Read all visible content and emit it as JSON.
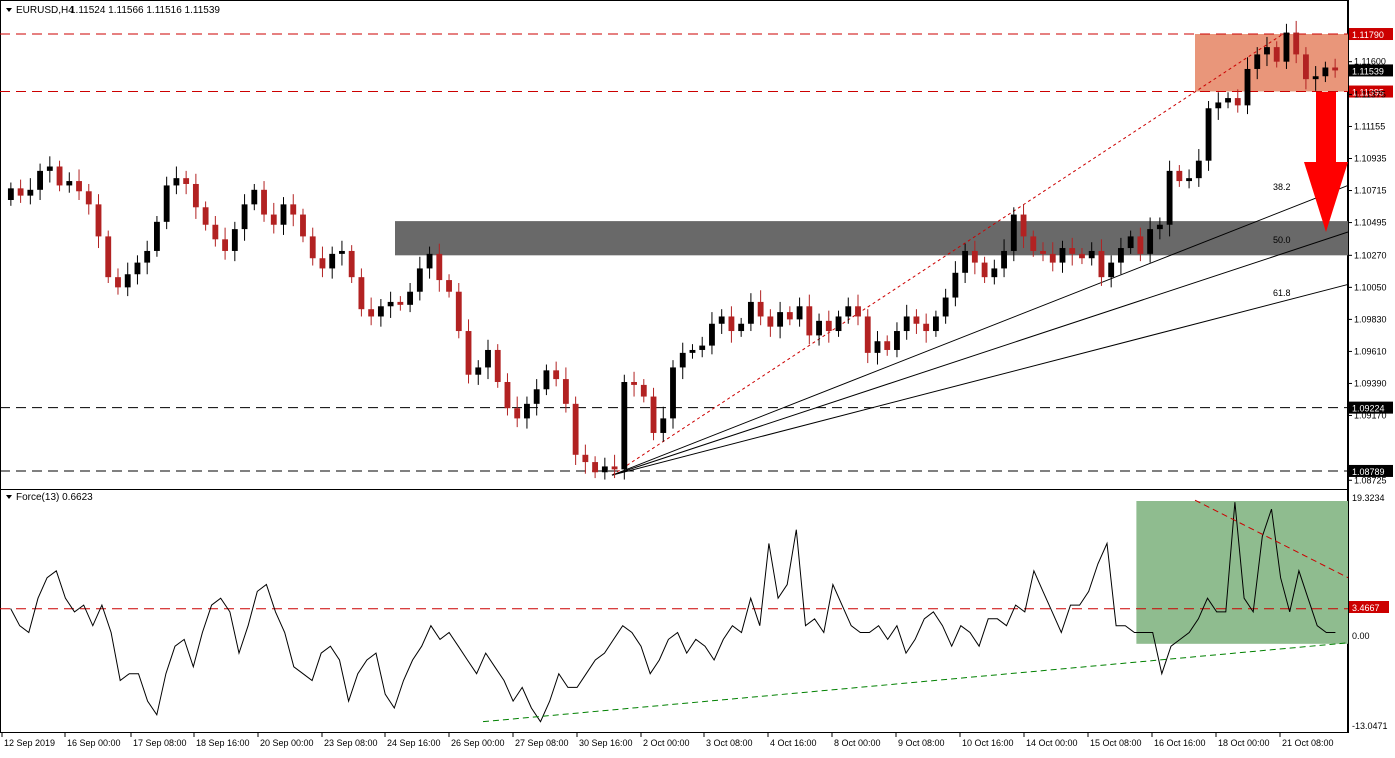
{
  "header": {
    "symbol": "EURUSD,H4",
    "ohlc": "1.11524 1.11566 1.11516 1.11539"
  },
  "indicator": {
    "label": "Force(13) 0.6623",
    "axis_max": "19.3234",
    "axis_level": "3.4667",
    "axis_zero": "0.00",
    "axis_min": "-13.0471"
  },
  "colors": {
    "bull": "#000000",
    "bear": "#b22222",
    "resistance_zone": "#e9967a",
    "support_zone": "#696969",
    "force_zone": "#8fbc8f",
    "arrow": "#ff0000",
    "level_line": "#cc0000"
  },
  "chart_data": [
    {
      "type": "candlestick",
      "panel": "price",
      "ylim": [
        1.0872,
        1.119
      ],
      "y_ticks": [
        "1.11600",
        "1.11375",
        "1.11155",
        "1.10935",
        "1.10715",
        "1.10495",
        "1.10270",
        "1.10050",
        "1.09830",
        "1.09610",
        "1.09390",
        "1.09170",
        "1.08725"
      ],
      "x_ticks": [
        "12 Sep 2019",
        "16 Sep 00:00",
        "17 Sep 08:00",
        "18 Sep 16:00",
        "20 Sep 00:00",
        "23 Sep 08:00",
        "24 Sep 16:00",
        "26 Sep 00:00",
        "27 Sep 08:00",
        "30 Sep 16:00",
        "2 Oct 00:00",
        "3 Oct 08:00",
        "4 Oct 16:00",
        "8 Oct 00:00",
        "9 Oct 08:00",
        "10 Oct 16:00",
        "14 Oct 00:00",
        "15 Oct 08:00",
        "16 Oct 16:00",
        "18 Oct 00:00",
        "21 Oct 08:00"
      ],
      "close_series": [
        1.1073,
        1.1068,
        1.1072,
        1.1085,
        1.1088,
        1.1075,
        1.1078,
        1.1071,
        1.1062,
        1.104,
        1.1012,
        1.1005,
        1.1014,
        1.1022,
        1.103,
        1.105,
        1.1075,
        1.108,
        1.1076,
        1.106,
        1.1048,
        1.1038,
        1.103,
        1.1045,
        1.1062,
        1.1072,
        1.1055,
        1.1048,
        1.1062,
        1.1055,
        1.104,
        1.1025,
        1.1018,
        1.1028,
        1.103,
        1.1012,
        1.099,
        1.0985,
        1.0992,
        1.0995,
        1.0993,
        1.1002,
        1.1018,
        1.1028,
        1.101,
        1.1002,
        1.0975,
        1.0945,
        1.095,
        1.0962,
        1.094,
        1.0922,
        1.0915,
        1.0925,
        1.0935,
        1.0948,
        1.0942,
        1.0925,
        1.089,
        1.0885,
        1.0878,
        1.0882,
        1.088,
        1.094,
        1.0938,
        1.093,
        1.0905,
        1.0915,
        1.095,
        1.096,
        1.0962,
        1.0965,
        1.098,
        1.0985,
        1.0975,
        1.098,
        1.0995,
        1.0985,
        1.0978,
        1.0988,
        1.0983,
        1.0992,
        1.0972,
        1.0982,
        1.0975,
        1.0985,
        1.0992,
        1.0985,
        1.096,
        1.0968,
        1.0962,
        1.0975,
        1.0985,
        1.098,
        1.0975,
        1.0985,
        1.0998,
        1.1015,
        1.103,
        1.1022,
        1.1012,
        1.1018,
        1.103,
        1.1055,
        1.104,
        1.103,
        1.1028,
        1.1022,
        1.1032,
        1.1028,
        1.1025,
        1.103,
        1.1012,
        1.1022,
        1.1032,
        1.104,
        1.1028,
        1.1045,
        1.1048,
        1.1085,
        1.1078,
        1.108,
        1.1092,
        1.1128,
        1.1132,
        1.1135,
        1.113,
        1.1155,
        1.1165,
        1.117,
        1.116,
        1.118,
        1.1165,
        1.1148,
        1.115,
        1.1156,
        1.1154
      ],
      "fib_levels": [
        "38.2",
        "50.0",
        "61.8"
      ],
      "price_lines": [
        {
          "label": "1.11790",
          "value": 1.1179,
          "style": "red-dashed",
          "tag": "red"
        },
        {
          "label": "1.11395",
          "value": 1.11395,
          "style": "red-dashed",
          "tag": "red"
        },
        {
          "label": "1.09224",
          "value": 1.09224,
          "style": "black-dashed",
          "tag": "black"
        },
        {
          "label": "1.08789",
          "value": 1.08789,
          "style": "black-dashed",
          "tag": "black"
        }
      ],
      "current_price": "1.11539",
      "resistance_zone": [
        1.11395,
        1.1179
      ],
      "support_zone": [
        1.1027,
        1.10505
      ]
    },
    {
      "type": "line",
      "panel": "indicator",
      "ylim": [
        -13.0471,
        19.3234
      ],
      "level": 3.4667,
      "values": [
        3.5,
        1,
        0,
        5,
        8,
        9,
        5,
        3,
        4,
        1,
        4,
        0,
        -7,
        -6,
        -6,
        -10,
        -12,
        -6,
        -2,
        -1,
        -5,
        0,
        4,
        5,
        3,
        -3,
        1,
        6,
        7,
        3,
        0,
        -5,
        -6,
        -7,
        -3,
        -2,
        -4,
        -10,
        -6,
        -4,
        -3,
        -9,
        -11,
        -7,
        -4,
        -2,
        1,
        -1,
        0,
        -2,
        -4,
        -6,
        -3,
        -5,
        -7,
        -10,
        -8,
        -11,
        -13,
        -10,
        -6,
        -8,
        -8,
        -6,
        -4,
        -3,
        -1,
        1,
        0,
        -2,
        -6,
        -4,
        -1,
        0,
        -3,
        -1,
        -2,
        -4,
        -1,
        1,
        0,
        5,
        1,
        13,
        5,
        7,
        15,
        1,
        2,
        0,
        7,
        4,
        1,
        0,
        0,
        1,
        -1,
        1,
        -3,
        -1,
        2,
        3,
        1,
        -2,
        1,
        0,
        -2,
        2,
        2,
        1,
        4,
        3,
        9,
        6,
        3,
        0,
        4,
        4,
        6,
        10,
        13,
        1,
        1,
        0,
        0,
        0,
        -6,
        -2,
        -1,
        0,
        2,
        5,
        3,
        3,
        19,
        5,
        3,
        14,
        18,
        8,
        3,
        9,
        5,
        1,
        0,
        0
      ],
      "force_zone_start_index": 116
    }
  ]
}
